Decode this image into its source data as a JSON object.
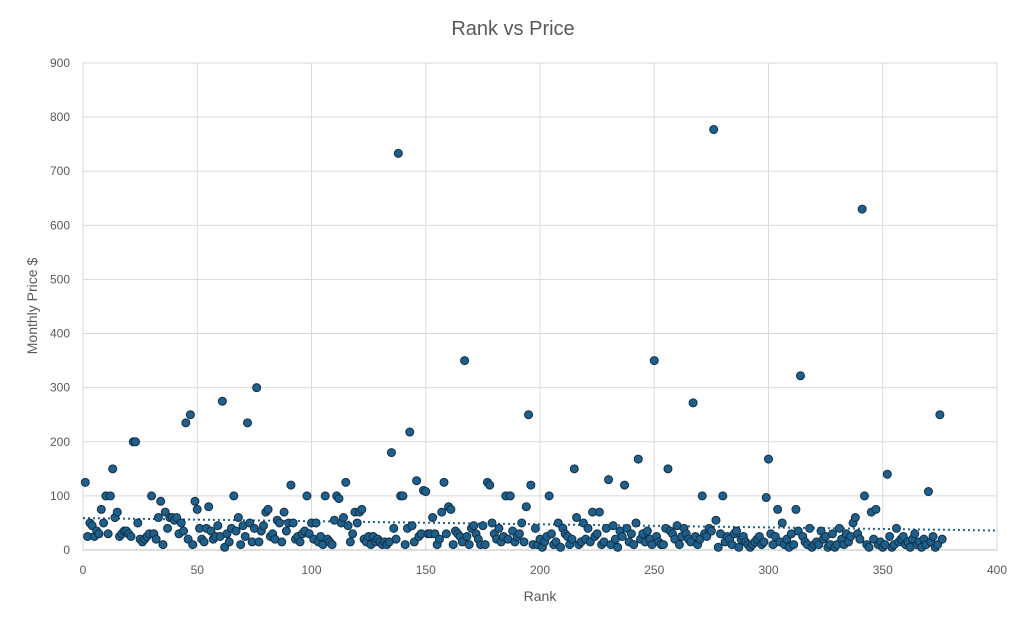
{
  "chart_data": {
    "type": "scatter",
    "title": "Rank vs Price",
    "xlabel": "Rank",
    "ylabel": "Monthly Price $",
    "xlim": [
      0,
      400
    ],
    "ylim": [
      0,
      900
    ],
    "x_ticks": [
      "0",
      "50",
      "100",
      "150",
      "200",
      "250",
      "300",
      "350",
      "400"
    ],
    "y_ticks": [
      "0",
      "100",
      "200",
      "300",
      "400",
      "500",
      "600",
      "700",
      "800",
      "900"
    ],
    "grid": true,
    "legend": "none",
    "point_color": "#1f5f8b",
    "trendline": {
      "type": "linear",
      "color": "#1f5f8b",
      "start": [
        0,
        59
      ],
      "end": [
        400,
        36
      ]
    },
    "points": [
      [
        1,
        125
      ],
      [
        2,
        25
      ],
      [
        3,
        50
      ],
      [
        4,
        45
      ],
      [
        5,
        25
      ],
      [
        6,
        35
      ],
      [
        7,
        30
      ],
      [
        8,
        75
      ],
      [
        9,
        50
      ],
      [
        10,
        100
      ],
      [
        11,
        30
      ],
      [
        12,
        100
      ],
      [
        13,
        150
      ],
      [
        14,
        60
      ],
      [
        15,
        70
      ],
      [
        16,
        25
      ],
      [
        17,
        30
      ],
      [
        18,
        35
      ],
      [
        19,
        35
      ],
      [
        20,
        30
      ],
      [
        21,
        25
      ],
      [
        22,
        200
      ],
      [
        23,
        200
      ],
      [
        24,
        50
      ],
      [
        25,
        20
      ],
      [
        26,
        15
      ],
      [
        27,
        20
      ],
      [
        28,
        25
      ],
      [
        29,
        30
      ],
      [
        30,
        100
      ],
      [
        31,
        30
      ],
      [
        32,
        20
      ],
      [
        33,
        60
      ],
      [
        34,
        90
      ],
      [
        35,
        10
      ],
      [
        36,
        70
      ],
      [
        37,
        40
      ],
      [
        38,
        60
      ],
      [
        39,
        60
      ],
      [
        40,
        55
      ],
      [
        41,
        60
      ],
      [
        42,
        30
      ],
      [
        43,
        50
      ],
      [
        44,
        35
      ],
      [
        45,
        235
      ],
      [
        46,
        20
      ],
      [
        47,
        250
      ],
      [
        48,
        10
      ],
      [
        49,
        90
      ],
      [
        50,
        75
      ],
      [
        51,
        40
      ],
      [
        52,
        20
      ],
      [
        53,
        15
      ],
      [
        54,
        40
      ],
      [
        55,
        80
      ],
      [
        56,
        35
      ],
      [
        57,
        20
      ],
      [
        58,
        25
      ],
      [
        59,
        45
      ],
      [
        60,
        25
      ],
      [
        61,
        275
      ],
      [
        62,
        5
      ],
      [
        63,
        30
      ],
      [
        64,
        15
      ],
      [
        65,
        40
      ],
      [
        66,
        100
      ],
      [
        67,
        35
      ],
      [
        68,
        60
      ],
      [
        69,
        10
      ],
      [
        70,
        45
      ],
      [
        71,
        25
      ],
      [
        72,
        235
      ],
      [
        73,
        50
      ],
      [
        74,
        15
      ],
      [
        75,
        40
      ],
      [
        76,
        300
      ],
      [
        77,
        15
      ],
      [
        78,
        35
      ],
      [
        79,
        45
      ],
      [
        80,
        70
      ],
      [
        81,
        75
      ],
      [
        82,
        25
      ],
      [
        83,
        30
      ],
      [
        84,
        20
      ],
      [
        85,
        55
      ],
      [
        86,
        50
      ],
      [
        87,
        15
      ],
      [
        88,
        70
      ],
      [
        89,
        35
      ],
      [
        90,
        50
      ],
      [
        91,
        120
      ],
      [
        92,
        50
      ],
      [
        93,
        20
      ],
      [
        94,
        25
      ],
      [
        95,
        15
      ],
      [
        96,
        30
      ],
      [
        97,
        35
      ],
      [
        98,
        100
      ],
      [
        99,
        30
      ],
      [
        100,
        50
      ],
      [
        101,
        20
      ],
      [
        102,
        50
      ],
      [
        103,
        15
      ],
      [
        104,
        25
      ],
      [
        105,
        10
      ],
      [
        106,
        100
      ],
      [
        107,
        20
      ],
      [
        108,
        15
      ],
      [
        109,
        10
      ],
      [
        110,
        55
      ],
      [
        111,
        100
      ],
      [
        112,
        95
      ],
      [
        113,
        50
      ],
      [
        114,
        60
      ],
      [
        115,
        125
      ],
      [
        116,
        45
      ],
      [
        117,
        15
      ],
      [
        118,
        30
      ],
      [
        119,
        70
      ],
      [
        120,
        50
      ],
      [
        121,
        70
      ],
      [
        122,
        75
      ],
      [
        123,
        20
      ],
      [
        124,
        15
      ],
      [
        125,
        25
      ],
      [
        126,
        10
      ],
      [
        127,
        25
      ],
      [
        128,
        15
      ],
      [
        129,
        20
      ],
      [
        130,
        15
      ],
      [
        131,
        10
      ],
      [
        132,
        15
      ],
      [
        133,
        10
      ],
      [
        134,
        15
      ],
      [
        135,
        180
      ],
      [
        136,
        40
      ],
      [
        137,
        20
      ],
      [
        138,
        733
      ],
      [
        139,
        100
      ],
      [
        140,
        100
      ],
      [
        141,
        10
      ],
      [
        142,
        40
      ],
      [
        143,
        218
      ],
      [
        144,
        45
      ],
      [
        145,
        15
      ],
      [
        146,
        128
      ],
      [
        147,
        25
      ],
      [
        148,
        30
      ],
      [
        149,
        110
      ],
      [
        150,
        108
      ],
      [
        151,
        30
      ],
      [
        152,
        30
      ],
      [
        153,
        60
      ],
      [
        154,
        30
      ],
      [
        155,
        10
      ],
      [
        156,
        20
      ],
      [
        157,
        70
      ],
      [
        158,
        125
      ],
      [
        159,
        30
      ],
      [
        160,
        80
      ],
      [
        161,
        75
      ],
      [
        162,
        10
      ],
      [
        163,
        35
      ],
      [
        164,
        30
      ],
      [
        165,
        25
      ],
      [
        166,
        15
      ],
      [
        167,
        350
      ],
      [
        168,
        25
      ],
      [
        169,
        10
      ],
      [
        170,
        40
      ],
      [
        171,
        45
      ],
      [
        172,
        30
      ],
      [
        173,
        20
      ],
      [
        174,
        10
      ],
      [
        175,
        45
      ],
      [
        176,
        10
      ],
      [
        177,
        125
      ],
      [
        178,
        120
      ],
      [
        179,
        50
      ],
      [
        180,
        30
      ],
      [
        181,
        20
      ],
      [
        182,
        40
      ],
      [
        183,
        15
      ],
      [
        184,
        25
      ],
      [
        185,
        100
      ],
      [
        186,
        20
      ],
      [
        187,
        100
      ],
      [
        188,
        35
      ],
      [
        189,
        15
      ],
      [
        190,
        25
      ],
      [
        191,
        30
      ],
      [
        192,
        50
      ],
      [
        193,
        15
      ],
      [
        194,
        80
      ],
      [
        195,
        250
      ],
      [
        196,
        120
      ],
      [
        197,
        10
      ],
      [
        198,
        40
      ],
      [
        199,
        10
      ],
      [
        200,
        20
      ],
      [
        201,
        5
      ],
      [
        202,
        15
      ],
      [
        203,
        25
      ],
      [
        204,
        100
      ],
      [
        205,
        30
      ],
      [
        206,
        10
      ],
      [
        207,
        15
      ],
      [
        208,
        50
      ],
      [
        209,
        5
      ],
      [
        210,
        40
      ],
      [
        211,
        30
      ],
      [
        212,
        25
      ],
      [
        213,
        10
      ],
      [
        214,
        20
      ],
      [
        215,
        150
      ],
      [
        216,
        60
      ],
      [
        217,
        10
      ],
      [
        218,
        15
      ],
      [
        219,
        50
      ],
      [
        220,
        20
      ],
      [
        221,
        40
      ],
      [
        222,
        15
      ],
      [
        223,
        70
      ],
      [
        224,
        25
      ],
      [
        225,
        30
      ],
      [
        226,
        70
      ],
      [
        227,
        10
      ],
      [
        228,
        15
      ],
      [
        229,
        40
      ],
      [
        230,
        130
      ],
      [
        231,
        10
      ],
      [
        232,
        45
      ],
      [
        233,
        20
      ],
      [
        234,
        5
      ],
      [
        235,
        35
      ],
      [
        236,
        25
      ],
      [
        237,
        120
      ],
      [
        238,
        40
      ],
      [
        239,
        15
      ],
      [
        240,
        30
      ],
      [
        241,
        10
      ],
      [
        242,
        50
      ],
      [
        243,
        168
      ],
      [
        244,
        20
      ],
      [
        245,
        30
      ],
      [
        246,
        15
      ],
      [
        247,
        35
      ],
      [
        248,
        20
      ],
      [
        249,
        10
      ],
      [
        250,
        350
      ],
      [
        251,
        25
      ],
      [
        252,
        15
      ],
      [
        253,
        10
      ],
      [
        254,
        10
      ],
      [
        255,
        40
      ],
      [
        256,
        150
      ],
      [
        257,
        35
      ],
      [
        258,
        30
      ],
      [
        259,
        20
      ],
      [
        260,
        45
      ],
      [
        261,
        10
      ],
      [
        262,
        25
      ],
      [
        263,
        40
      ],
      [
        264,
        30
      ],
      [
        265,
        20
      ],
      [
        266,
        15
      ],
      [
        267,
        272
      ],
      [
        268,
        25
      ],
      [
        269,
        10
      ],
      [
        270,
        20
      ],
      [
        271,
        100
      ],
      [
        272,
        30
      ],
      [
        273,
        25
      ],
      [
        274,
        40
      ],
      [
        275,
        35
      ],
      [
        276,
        777
      ],
      [
        277,
        55
      ],
      [
        278,
        5
      ],
      [
        279,
        30
      ],
      [
        280,
        100
      ],
      [
        281,
        15
      ],
      [
        282,
        25
      ],
      [
        283,
        20
      ],
      [
        284,
        10
      ],
      [
        285,
        30
      ],
      [
        286,
        35
      ],
      [
        287,
        5
      ],
      [
        288,
        20
      ],
      [
        289,
        25
      ],
      [
        290,
        15
      ],
      [
        291,
        10
      ],
      [
        292,
        5
      ],
      [
        293,
        10
      ],
      [
        294,
        15
      ],
      [
        295,
        20
      ],
      [
        296,
        25
      ],
      [
        297,
        10
      ],
      [
        298,
        15
      ],
      [
        299,
        97
      ],
      [
        300,
        168
      ],
      [
        301,
        30
      ],
      [
        302,
        10
      ],
      [
        303,
        25
      ],
      [
        304,
        75
      ],
      [
        305,
        15
      ],
      [
        306,
        50
      ],
      [
        307,
        10
      ],
      [
        308,
        20
      ],
      [
        309,
        5
      ],
      [
        310,
        30
      ],
      [
        311,
        10
      ],
      [
        312,
        75
      ],
      [
        313,
        35
      ],
      [
        314,
        322
      ],
      [
        315,
        25
      ],
      [
        316,
        15
      ],
      [
        317,
        10
      ],
      [
        318,
        40
      ],
      [
        319,
        5
      ],
      [
        320,
        10
      ],
      [
        321,
        15
      ],
      [
        322,
        10
      ],
      [
        323,
        35
      ],
      [
        324,
        20
      ],
      [
        325,
        25
      ],
      [
        326,
        5
      ],
      [
        327,
        10
      ],
      [
        328,
        30
      ],
      [
        329,
        5
      ],
      [
        330,
        10
      ],
      [
        331,
        40
      ],
      [
        332,
        20
      ],
      [
        333,
        10
      ],
      [
        334,
        30
      ],
      [
        335,
        15
      ],
      [
        336,
        25
      ],
      [
        337,
        50
      ],
      [
        338,
        60
      ],
      [
        339,
        30
      ],
      [
        340,
        20
      ],
      [
        341,
        630
      ],
      [
        342,
        100
      ],
      [
        343,
        10
      ],
      [
        344,
        5
      ],
      [
        345,
        70
      ],
      [
        346,
        20
      ],
      [
        347,
        75
      ],
      [
        348,
        10
      ],
      [
        349,
        15
      ],
      [
        350,
        5
      ],
      [
        351,
        10
      ],
      [
        352,
        140
      ],
      [
        353,
        25
      ],
      [
        354,
        5
      ],
      [
        355,
        10
      ],
      [
        356,
        40
      ],
      [
        357,
        15
      ],
      [
        358,
        20
      ],
      [
        359,
        25
      ],
      [
        360,
        10
      ],
      [
        361,
        15
      ],
      [
        362,
        5
      ],
      [
        363,
        20
      ],
      [
        364,
        30
      ],
      [
        365,
        10
      ],
      [
        366,
        15
      ],
      [
        367,
        5
      ],
      [
        368,
        20
      ],
      [
        369,
        10
      ],
      [
        370,
        108
      ],
      [
        371,
        15
      ],
      [
        372,
        25
      ],
      [
        373,
        5
      ],
      [
        374,
        10
      ],
      [
        375,
        250
      ],
      [
        376,
        20
      ]
    ]
  }
}
